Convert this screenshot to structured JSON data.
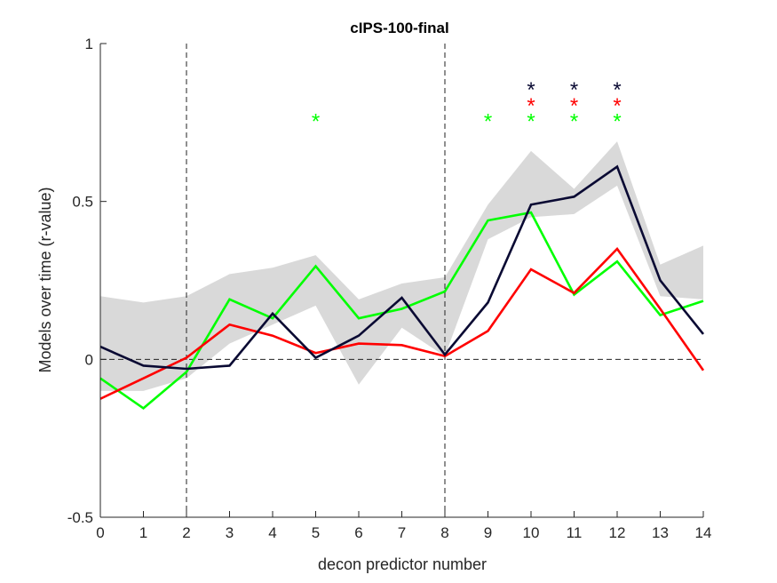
{
  "chart_data": {
    "type": "line",
    "title": "cIPS-100-final",
    "xlabel": "decon predictor number",
    "ylabel": "Models over time (r-value)",
    "xlim": [
      0,
      14
    ],
    "ylim": [
      -0.5,
      1
    ],
    "x_ticks": [
      0,
      1,
      2,
      3,
      4,
      5,
      6,
      7,
      8,
      9,
      10,
      11,
      12,
      13,
      14
    ],
    "y_ticks": [
      -0.5,
      0,
      0.5,
      1
    ],
    "y_tick_labels": [
      "-0.5",
      "0",
      "0.5",
      "1"
    ],
    "vertical_reference_lines": [
      2,
      8
    ],
    "horizontal_reference_line": 0,
    "x": [
      0,
      1,
      2,
      3,
      4,
      5,
      6,
      7,
      8,
      9,
      10,
      11,
      12,
      13,
      14
    ],
    "band": {
      "color": "#d9d9d9",
      "upper": [
        0.2,
        0.18,
        0.2,
        0.27,
        0.29,
        0.33,
        0.19,
        0.24,
        0.26,
        0.49,
        0.66,
        0.54,
        0.69,
        0.3,
        0.36
      ],
      "lower": [
        -0.1,
        -0.1,
        -0.06,
        0.05,
        0.11,
        0.17,
        -0.08,
        0.1,
        0.01,
        0.38,
        0.45,
        0.46,
        0.55,
        0.2,
        0.19
      ]
    },
    "series": [
      {
        "color": "#00ff00",
        "values": [
          -0.06,
          -0.155,
          -0.04,
          0.19,
          0.13,
          0.295,
          0.13,
          0.16,
          0.215,
          0.44,
          0.465,
          0.205,
          0.31,
          0.14,
          0.185
        ]
      },
      {
        "color": "#ff0000",
        "values": [
          -0.125,
          -0.06,
          0.005,
          0.11,
          0.075,
          0.02,
          0.05,
          0.045,
          0.01,
          0.09,
          0.285,
          0.21,
          0.35,
          0.16,
          -0.035
        ]
      },
      {
        "color": "#0a0a33",
        "values": [
          0.04,
          -0.02,
          -0.03,
          -0.02,
          0.145,
          0.005,
          0.075,
          0.195,
          0.015,
          0.18,
          0.49,
          0.515,
          0.61,
          0.25,
          0.08
        ]
      }
    ],
    "significance_markers": [
      {
        "x": 5,
        "y": 0.77,
        "color": "#00ff00",
        "text": "*"
      },
      {
        "x": 9,
        "y": 0.77,
        "color": "#00ff00",
        "text": "*"
      },
      {
        "x": 10,
        "y": 0.77,
        "color": "#00ff00",
        "text": "*"
      },
      {
        "x": 11,
        "y": 0.77,
        "color": "#00ff00",
        "text": "*"
      },
      {
        "x": 12,
        "y": 0.77,
        "color": "#00ff00",
        "text": "*"
      },
      {
        "x": 10,
        "y": 0.82,
        "color": "#ff0000",
        "text": "*"
      },
      {
        "x": 11,
        "y": 0.82,
        "color": "#ff0000",
        "text": "*"
      },
      {
        "x": 12,
        "y": 0.82,
        "color": "#ff0000",
        "text": "*"
      },
      {
        "x": 10,
        "y": 0.87,
        "color": "#0a0a33",
        "text": "*"
      },
      {
        "x": 11,
        "y": 0.87,
        "color": "#0a0a33",
        "text": "*"
      },
      {
        "x": 12,
        "y": 0.87,
        "color": "#0a0a33",
        "text": "*"
      }
    ]
  }
}
